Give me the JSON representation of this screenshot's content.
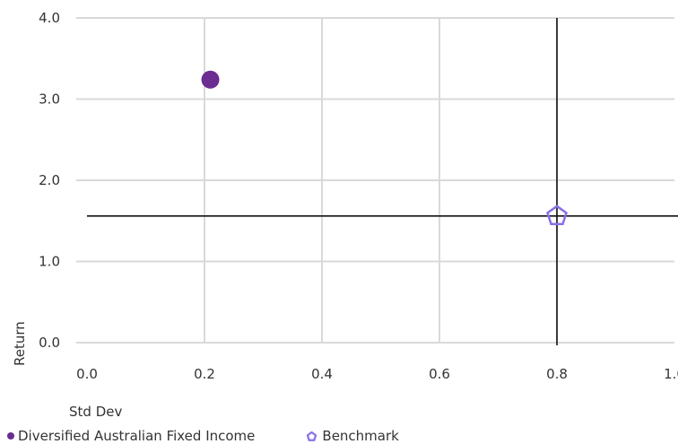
{
  "chart_data": {
    "type": "scatter",
    "xlabel": "Std Dev",
    "ylabel": "Return",
    "xlim": [
      0.0,
      1.0
    ],
    "ylim": [
      0.0,
      4.0
    ],
    "x_ticks": [
      "0.0",
      "0.2",
      "0.4",
      "0.6",
      "0.8",
      "1.0"
    ],
    "y_ticks": [
      "0.0",
      "1.0",
      "2.0",
      "3.0",
      "4.0"
    ],
    "grid": true,
    "legend_position": "bottom",
    "series": [
      {
        "name": "Diversified Australian Fixed Income",
        "marker": "circle",
        "color": "#6b2d91",
        "x": 0.21,
        "y": 3.24
      },
      {
        "name": "Benchmark",
        "marker": "pentagon",
        "color": "#8a70e6",
        "x": 0.8,
        "y": 1.56
      }
    ],
    "reference_lines": {
      "x": 0.8,
      "y": 1.56
    }
  }
}
